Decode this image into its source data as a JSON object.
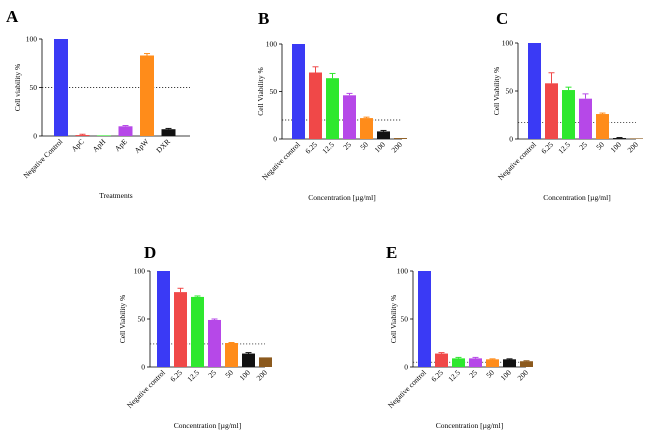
{
  "chart_data": [
    {
      "panel": "A",
      "type": "bar",
      "title": "",
      "xlabel": "Treatments",
      "ylabel": "Cell viability %",
      "ylim": [
        0,
        100
      ],
      "yticks": [
        "0",
        "50",
        "100"
      ],
      "threshold": 50,
      "categories": [
        "Negative Control",
        "ApC",
        "ApH",
        "ApE",
        "ApW",
        "DXR"
      ],
      "values": [
        100,
        1,
        0.3,
        10,
        83,
        7
      ],
      "errors": [
        0,
        0.8,
        0,
        0.8,
        2,
        0.8
      ],
      "colors": [
        "#3a3af5",
        "#f04848",
        "#2ee82e",
        "#b648e8",
        "#ff8c1a",
        "#111111"
      ]
    },
    {
      "panel": "B",
      "type": "bar",
      "title": "",
      "xlabel": "Concentration [µg/ml]",
      "ylabel": "Cell Viability %",
      "ylim": [
        0,
        100
      ],
      "yticks": [
        "0",
        "50",
        "100"
      ],
      "threshold": 20,
      "categories": [
        "Negative control",
        "6.25",
        "12.5",
        "25",
        "50",
        "100",
        "200"
      ],
      "values": [
        100,
        70,
        64,
        46,
        22,
        8,
        1
      ],
      "errors": [
        0,
        6,
        5,
        2,
        1,
        1,
        0
      ],
      "colors": [
        "#3a3af5",
        "#f04848",
        "#2ee82e",
        "#b648e8",
        "#ff8c1a",
        "#111111",
        "#8c5a1e"
      ]
    },
    {
      "panel": "C",
      "type": "bar",
      "title": "",
      "xlabel": "Concentration [µg/ml]",
      "ylabel": "Cell Viability %",
      "ylim": [
        0,
        100
      ],
      "yticks": [
        "0",
        "50",
        "100"
      ],
      "threshold": 17,
      "categories": [
        "Negative control",
        "6.25",
        "12.5",
        "25",
        "50",
        "100",
        "200"
      ],
      "values": [
        100,
        58,
        51,
        42,
        26,
        1,
        0.5
      ],
      "errors": [
        0,
        11,
        3,
        5,
        1,
        0.5,
        0
      ],
      "colors": [
        "#3a3af5",
        "#f04848",
        "#2ee82e",
        "#b648e8",
        "#ff8c1a",
        "#111111",
        "#8c5a1e"
      ]
    },
    {
      "panel": "D",
      "type": "bar",
      "title": "",
      "xlabel": "Concentration [µg/ml]",
      "ylabel": "Cell Viability %",
      "ylim": [
        0,
        100
      ],
      "yticks": [
        "0",
        "50",
        "100"
      ],
      "threshold": 24,
      "categories": [
        "Negative control",
        "6.25",
        "12.5",
        "25",
        "50",
        "100",
        "200"
      ],
      "values": [
        100,
        78,
        73,
        49,
        25,
        14,
        10
      ],
      "errors": [
        0,
        4,
        1,
        1,
        0.5,
        1,
        0
      ],
      "colors": [
        "#3a3af5",
        "#f04848",
        "#2ee82e",
        "#b648e8",
        "#ff8c1a",
        "#111111",
        "#8c5a1e"
      ]
    },
    {
      "panel": "E",
      "type": "bar",
      "title": "",
      "xlabel": "Concentration [µg/ml]",
      "ylabel": "Cell Viability %",
      "ylim": [
        0,
        100
      ],
      "yticks": [
        "0",
        "50",
        "100"
      ],
      "threshold": 5,
      "categories": [
        "Negative control",
        "6.25",
        "12.5",
        "25",
        "50",
        "100",
        "200"
      ],
      "values": [
        100,
        14,
        9,
        9,
        8,
        8,
        6
      ],
      "errors": [
        0,
        1,
        1,
        1,
        0.5,
        0.5,
        0.5
      ],
      "colors": [
        "#3a3af5",
        "#f04848",
        "#2ee82e",
        "#b648e8",
        "#ff8c1a",
        "#111111",
        "#8c5a1e"
      ]
    }
  ]
}
